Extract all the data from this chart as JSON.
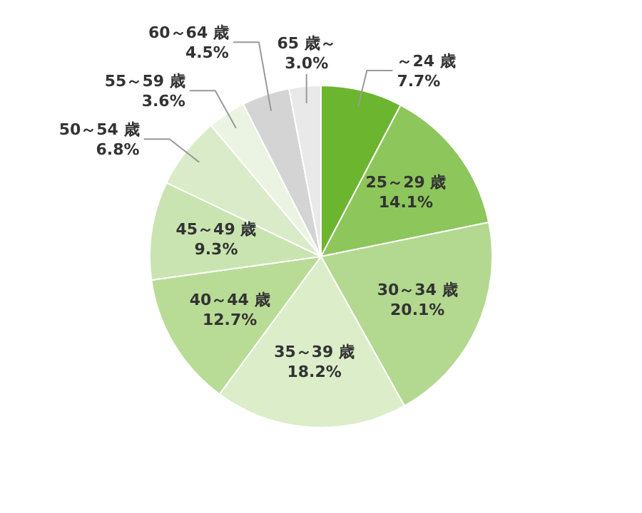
{
  "chart_data": {
    "type": "pie",
    "categories": [
      "～24 歳",
      "25～29 歳",
      "30～34 歳",
      "35～39 歳",
      "40～44 歳",
      "45～49 歳",
      "50～54 歳",
      "55～59 歳",
      "60～64 歳",
      "65 歳～"
    ],
    "values": [
      7.7,
      14.1,
      20.1,
      18.2,
      12.7,
      9.3,
      6.8,
      3.6,
      4.5,
      3.0
    ],
    "value_labels": [
      "7.7%",
      "14.1%",
      "20.1%",
      "18.2%",
      "12.7%",
      "9.3%",
      "6.8%",
      "3.6%",
      "4.5%",
      "3.0%"
    ],
    "colors": [
      "#6cb52e",
      "#8dc65b",
      "#b3d88f",
      "#dcedc9",
      "#b8dc96",
      "#c9e4b0",
      "#d9ebc8",
      "#ebf4e2",
      "#d4d4d4",
      "#e9e9e9"
    ]
  }
}
